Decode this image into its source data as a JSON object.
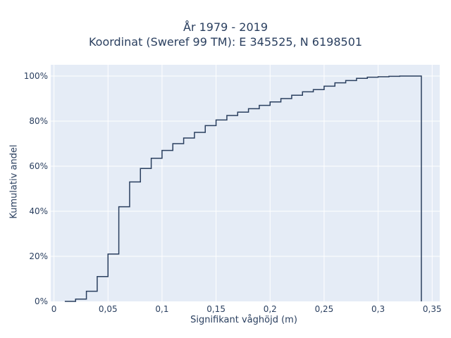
{
  "chart_data": {
    "type": "line",
    "line_shape": "step",
    "title": [
      "År 1979 - 2019",
      "Koordinat (Sweref 99 TM): E 345525, N 6198501"
    ],
    "xlabel": "Signifikant våghöjd (m)",
    "ylabel": "Kumulativ andel",
    "xlim": [
      -0.003,
      0.357
    ],
    "ylim": [
      0,
      1.05
    ],
    "x_ticks": [
      0,
      0.05,
      0.1,
      0.15,
      0.2,
      0.25,
      0.3,
      0.35
    ],
    "x_tick_labels": [
      "0",
      "0,05",
      "0,1",
      "0,15",
      "0,2",
      "0,25",
      "0,3",
      "0,35"
    ],
    "y_ticks": [
      0,
      0.2,
      0.4,
      0.6,
      0.8,
      1.0
    ],
    "y_tick_labels": [
      "0%",
      "20%",
      "40%",
      "60%",
      "80%",
      "100%"
    ],
    "grid": true,
    "colors": {
      "line": "#2a3f5f",
      "plot_bg": "#e5ecf6",
      "grid": "#ffffff"
    },
    "x": [
      0.01,
      0.02,
      0.03,
      0.04,
      0.05,
      0.06,
      0.07,
      0.08,
      0.09,
      0.1,
      0.11,
      0.12,
      0.13,
      0.14,
      0.15,
      0.16,
      0.17,
      0.18,
      0.19,
      0.2,
      0.21,
      0.22,
      0.23,
      0.24,
      0.25,
      0.26,
      0.27,
      0.28,
      0.29,
      0.3,
      0.31,
      0.32,
      0.33,
      0.34
    ],
    "y": [
      0.0,
      0.01,
      0.045,
      0.11,
      0.21,
      0.42,
      0.53,
      0.59,
      0.635,
      0.67,
      0.7,
      0.725,
      0.75,
      0.78,
      0.805,
      0.825,
      0.84,
      0.855,
      0.87,
      0.885,
      0.9,
      0.915,
      0.93,
      0.94,
      0.955,
      0.97,
      0.98,
      0.99,
      0.995,
      0.997,
      0.999,
      1.0,
      1.0,
      0.0
    ]
  }
}
